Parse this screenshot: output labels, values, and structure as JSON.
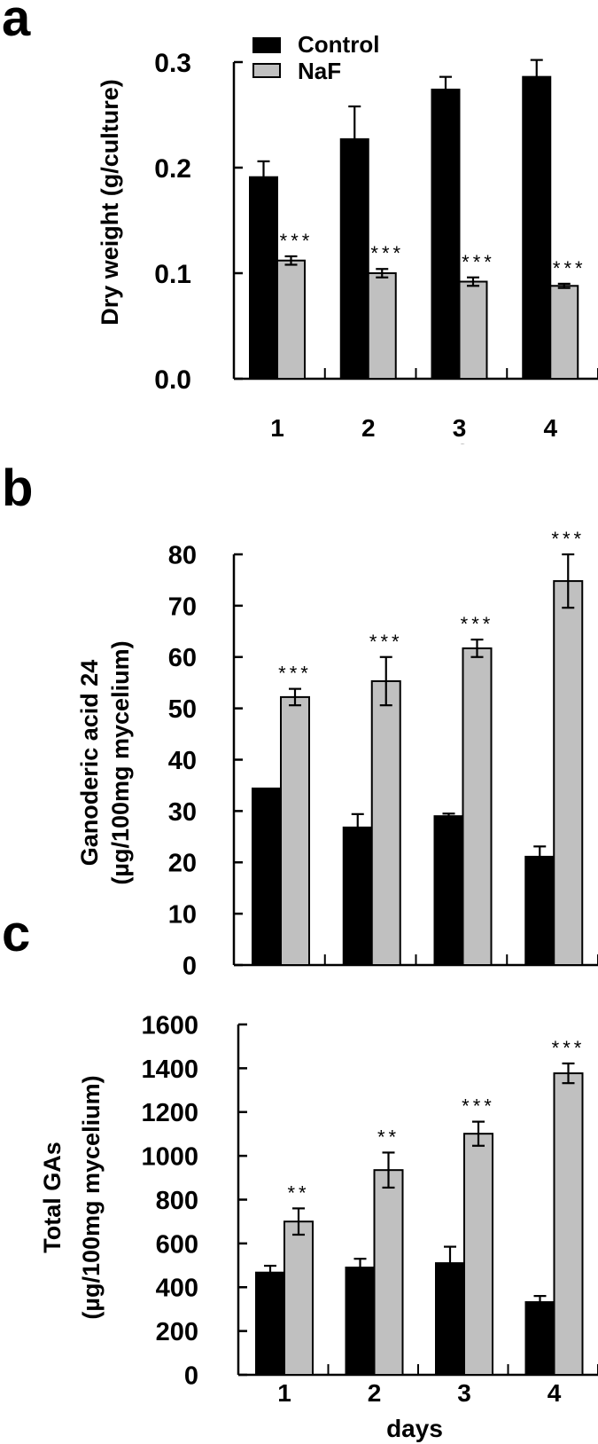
{
  "figure": {
    "panels": [
      {
        "letter": "a"
      },
      {
        "letter": "b"
      },
      {
        "letter": "c"
      }
    ],
    "legend": [
      {
        "label": "Control",
        "color": "#000000"
      },
      {
        "label": "NaF",
        "color": "#c0c0c0"
      }
    ],
    "xlabel": "days"
  },
  "chart_data": [
    {
      "panel": "a",
      "type": "bar",
      "title": "",
      "xlabel": "",
      "ylabel": "Dry weight (g/culture)",
      "categories": [
        "1",
        "2",
        "3",
        "4"
      ],
      "ylim": [
        0,
        0.3
      ],
      "yticks": [
        "0.0",
        "0.1",
        "0.2",
        "0.3"
      ],
      "legend_position": "upper-left",
      "grid": false,
      "series": [
        {
          "name": "Control",
          "color": "#000000",
          "values": [
            0.191,
            0.227,
            0.274,
            0.286
          ],
          "errors": [
            0.015,
            0.031,
            0.012,
            0.016
          ]
        },
        {
          "name": "NaF",
          "color": "#c0c0c0",
          "values": [
            0.112,
            0.1,
            0.092,
            0.088
          ],
          "errors": [
            0.004,
            0.004,
            0.004,
            0.002
          ]
        }
      ],
      "annotations": [
        "***",
        "***",
        "***",
        "***"
      ]
    },
    {
      "panel": "b",
      "type": "bar",
      "title": "",
      "xlabel": "",
      "ylabel": "Ganoderic acid 24 (µg/100mg mycelium)",
      "ylabel_lines": [
        "Ganoderic acid 24",
        "(µg/100mg mycelium)"
      ],
      "categories": [
        "1",
        "2",
        "3",
        "4"
      ],
      "ylim": [
        0,
        80
      ],
      "yticks": [
        "0",
        "10",
        "20",
        "30",
        "40",
        "50",
        "60",
        "70",
        "80"
      ],
      "grid": false,
      "series": [
        {
          "name": "Control",
          "color": "#000000",
          "values": [
            34.4,
            26.8,
            29.0,
            21.1
          ],
          "errors": [
            0,
            2.6,
            0.5,
            2.0
          ]
        },
        {
          "name": "NaF",
          "color": "#c0c0c0",
          "values": [
            52.2,
            55.3,
            61.7,
            74.8
          ],
          "errors": [
            1.6,
            4.7,
            1.7,
            5.2
          ]
        }
      ],
      "annotations": [
        "***",
        "***",
        "***",
        "***"
      ]
    },
    {
      "panel": "c",
      "type": "bar",
      "title": "",
      "xlabel": "days",
      "ylabel": "Total GAs (µg/100mg mycelium)",
      "ylabel_lines": [
        "Total GAs",
        "(µg/100mg mycelium)"
      ],
      "categories": [
        "1",
        "2",
        "3",
        "4"
      ],
      "ylim": [
        0,
        1600
      ],
      "yticks": [
        "0",
        "200",
        "400",
        "600",
        "800",
        "1000",
        "1200",
        "1400",
        "1600"
      ],
      "grid": false,
      "series": [
        {
          "name": "Control",
          "color": "#000000",
          "values": [
            467,
            490,
            510,
            332
          ],
          "errors": [
            31,
            40,
            75,
            28
          ]
        },
        {
          "name": "NaF",
          "color": "#c0c0c0",
          "values": [
            700,
            935,
            1101,
            1377
          ],
          "errors": [
            60,
            80,
            55,
            45
          ]
        }
      ],
      "annotations": [
        "**",
        "**",
        "***",
        "***"
      ]
    }
  ]
}
